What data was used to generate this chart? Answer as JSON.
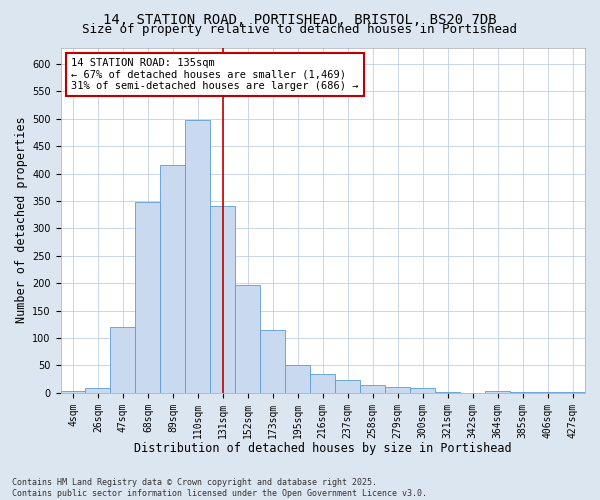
{
  "title_line1": "14, STATION ROAD, PORTISHEAD, BRISTOL, BS20 7DB",
  "title_line2": "Size of property relative to detached houses in Portishead",
  "xlabel": "Distribution of detached houses by size in Portishead",
  "ylabel": "Number of detached properties",
  "categories": [
    "4sqm",
    "26sqm",
    "47sqm",
    "68sqm",
    "89sqm",
    "110sqm",
    "131sqm",
    "152sqm",
    "173sqm",
    "195sqm",
    "216sqm",
    "237sqm",
    "258sqm",
    "279sqm",
    "300sqm",
    "321sqm",
    "342sqm",
    "364sqm",
    "385sqm",
    "406sqm",
    "427sqm"
  ],
  "values": [
    4,
    8,
    120,
    348,
    415,
    497,
    340,
    196,
    115,
    50,
    35,
    23,
    15,
    10,
    8,
    2,
    0,
    3,
    1,
    2,
    1
  ],
  "bar_color": "#c9daf0",
  "bar_edge_color": "#5b9bd5",
  "vline_x_index": 6,
  "vline_color": "#c00000",
  "annotation_text": "14 STATION ROAD: 135sqm\n← 67% of detached houses are smaller (1,469)\n31% of semi-detached houses are larger (686) →",
  "annotation_box_color": "white",
  "annotation_box_edge": "#c00000",
  "ylim": [
    0,
    630
  ],
  "yticks": [
    0,
    50,
    100,
    150,
    200,
    250,
    300,
    350,
    400,
    450,
    500,
    550,
    600
  ],
  "figure_background": "#dce6f1",
  "plot_background": "#ffffff",
  "footnote": "Contains HM Land Registry data © Crown copyright and database right 2025.\nContains public sector information licensed under the Open Government Licence v3.0.",
  "title_fontsize": 10,
  "subtitle_fontsize": 9,
  "tick_fontsize": 7,
  "label_fontsize": 8.5,
  "annotation_fontsize": 7.5,
  "footnote_fontsize": 6
}
